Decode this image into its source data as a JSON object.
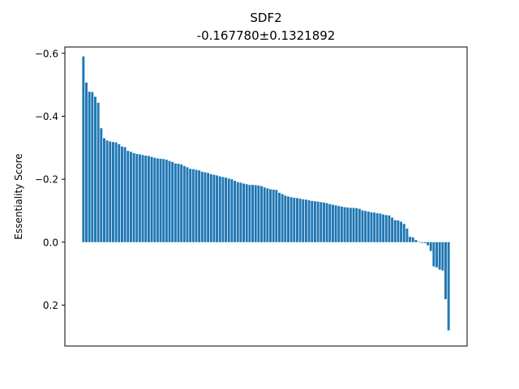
{
  "chart_data": {
    "type": "bar",
    "title": "SDF2",
    "subtitle": "-0.167780±0.1321892",
    "xlabel": "",
    "ylabel": "Essentiality Score",
    "ylim": [
      0.33,
      -0.62
    ],
    "y_inverted": true,
    "yticks": [
      -0.6,
      -0.4,
      -0.2,
      0.0,
      0.2
    ],
    "ytick_labels": [
      "−0.6",
      "−0.4",
      "−0.2",
      "0.0",
      "0.2"
    ],
    "show_xticks": false,
    "grid": false,
    "bar_color": "#1f77b4",
    "values": [
      -0.59,
      -0.507,
      -0.478,
      -0.477,
      -0.462,
      -0.443,
      -0.362,
      -0.33,
      -0.323,
      -0.32,
      -0.318,
      -0.317,
      -0.311,
      -0.304,
      -0.302,
      -0.29,
      -0.287,
      -0.283,
      -0.28,
      -0.279,
      -0.277,
      -0.275,
      -0.274,
      -0.271,
      -0.268,
      -0.266,
      -0.265,
      -0.264,
      -0.262,
      -0.258,
      -0.255,
      -0.25,
      -0.249,
      -0.247,
      -0.242,
      -0.238,
      -0.233,
      -0.232,
      -0.23,
      -0.228,
      -0.224,
      -0.222,
      -0.22,
      -0.216,
      -0.214,
      -0.212,
      -0.209,
      -0.207,
      -0.205,
      -0.202,
      -0.2,
      -0.195,
      -0.191,
      -0.189,
      -0.186,
      -0.184,
      -0.182,
      -0.182,
      -0.181,
      -0.18,
      -0.178,
      -0.174,
      -0.171,
      -0.168,
      -0.167,
      -0.166,
      -0.157,
      -0.153,
      -0.148,
      -0.145,
      -0.143,
      -0.141,
      -0.14,
      -0.138,
      -0.136,
      -0.135,
      -0.133,
      -0.131,
      -0.13,
      -0.129,
      -0.127,
      -0.126,
      -0.124,
      -0.121,
      -0.119,
      -0.117,
      -0.115,
      -0.113,
      -0.111,
      -0.11,
      -0.109,
      -0.109,
      -0.108,
      -0.106,
      -0.101,
      -0.099,
      -0.097,
      -0.095,
      -0.094,
      -0.092,
      -0.091,
      -0.088,
      -0.086,
      -0.085,
      -0.078,
      -0.07,
      -0.069,
      -0.065,
      -0.058,
      -0.043,
      -0.017,
      -0.015,
      -0.007,
      -0.001,
      0.002,
      0.003,
      0.01,
      0.028,
      0.077,
      0.08,
      0.087,
      0.09,
      0.181,
      0.28
    ]
  }
}
